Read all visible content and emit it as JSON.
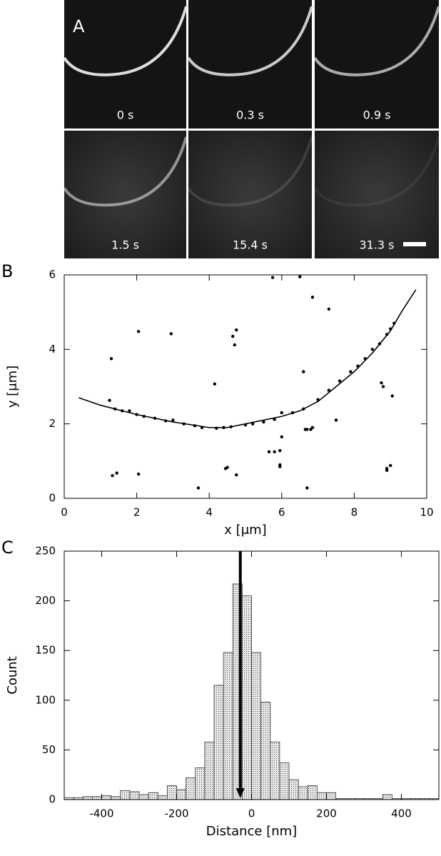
{
  "panel_a": {
    "label": "A",
    "frames": [
      "0 s",
      "0.3 s",
      "0.9 s",
      "1.5 s",
      "15.4 s",
      "31.3 s"
    ]
  },
  "chart_data": [
    {
      "type": "scatter",
      "label": "B",
      "xlabel": "x [μm]",
      "ylabel": "y [μm]",
      "xlim": [
        0,
        10
      ],
      "ylim": [
        0,
        6
      ],
      "xticks": [
        0,
        2,
        4,
        6,
        8,
        10
      ],
      "yticks": [
        0,
        2,
        4,
        6
      ],
      "color": "#000000",
      "points": {
        "x": [
          1.25,
          1.3,
          1.33,
          1.45,
          2.05,
          2.05,
          2.95,
          3.7,
          4.15,
          4.5,
          4.45,
          4.75,
          4.65,
          4.75,
          4.7,
          5.65,
          5.8,
          5.95,
          5.95,
          5.95,
          6.0,
          5.75,
          6.5,
          6.6,
          6.7,
          6.7,
          6.8,
          6.85,
          6.65,
          6.85,
          7.3,
          7.5,
          8.75,
          8.8,
          8.9,
          8.9,
          9.0,
          9.05,
          1.4,
          1.6,
          1.8,
          2.0,
          2.2,
          2.5,
          2.8,
          3.0,
          3.3,
          3.6,
          3.8,
          4.2,
          4.4,
          4.6,
          5.0,
          5.2,
          5.5,
          5.8,
          6.0,
          6.3,
          6.6,
          7.0,
          7.3,
          7.6,
          7.9,
          8.1,
          8.3,
          8.5,
          8.7,
          8.9,
          9.0,
          9.1
        ],
        "y": [
          2.63,
          3.75,
          0.61,
          0.68,
          4.48,
          0.65,
          4.42,
          0.28,
          3.07,
          0.83,
          0.8,
          0.63,
          4.35,
          4.52,
          4.12,
          1.25,
          1.25,
          1.28,
          0.9,
          0.85,
          1.65,
          5.93,
          5.95,
          3.4,
          0.28,
          1.85,
          1.85,
          1.9,
          1.85,
          5.4,
          5.08,
          2.1,
          3.1,
          3.0,
          0.8,
          0.75,
          0.88,
          2.75,
          2.4,
          2.35,
          2.35,
          2.25,
          2.2,
          2.15,
          2.08,
          2.1,
          2.0,
          1.95,
          1.9,
          1.88,
          1.9,
          1.92,
          1.97,
          2.0,
          2.05,
          2.12,
          2.3,
          2.3,
          2.4,
          2.65,
          2.9,
          3.15,
          3.4,
          3.55,
          3.75,
          4.0,
          4.15,
          4.4,
          4.55,
          4.7
        ]
      },
      "line": {
        "x": [
          0.4,
          1,
          2,
          3,
          4,
          4.5,
          5,
          6,
          6.5,
          7,
          7.5,
          8,
          8.5,
          9,
          9.3,
          9.7
        ],
        "y": [
          2.7,
          2.5,
          2.25,
          2.05,
          1.9,
          1.9,
          2.0,
          2.2,
          2.35,
          2.6,
          3.0,
          3.4,
          3.9,
          4.5,
          5.0,
          5.6
        ]
      }
    },
    {
      "type": "histogram",
      "label": "C",
      "xlabel": "Distance [nm]",
      "ylabel": "Count",
      "xlim": [
        -500,
        500
      ],
      "ylim": [
        0,
        250
      ],
      "xticks": [
        -400,
        -200,
        0,
        200,
        400
      ],
      "yticks": [
        0,
        50,
        100,
        150,
        200,
        250
      ],
      "bins": [
        -500,
        -475,
        -450,
        -425,
        -400,
        -375,
        -350,
        -325,
        -300,
        -275,
        -250,
        -225,
        -200,
        -175,
        -150,
        -125,
        -100,
        -75,
        -50,
        -25,
        0,
        25,
        50,
        75,
        100,
        125,
        150,
        175,
        200,
        225,
        250,
        275,
        300,
        325,
        350,
        375,
        400,
        425,
        450,
        475,
        500
      ],
      "values": [
        2,
        2,
        3,
        3,
        4,
        3,
        9,
        8,
        5,
        7,
        4,
        14,
        10,
        22,
        32,
        58,
        115,
        148,
        217,
        205,
        148,
        98,
        58,
        37,
        20,
        13,
        14,
        7,
        7,
        1,
        1,
        1,
        1,
        1,
        5,
        1,
        1,
        1,
        1,
        1
      ],
      "color": "#d9d9d9",
      "mean_marker": -30
    }
  ]
}
